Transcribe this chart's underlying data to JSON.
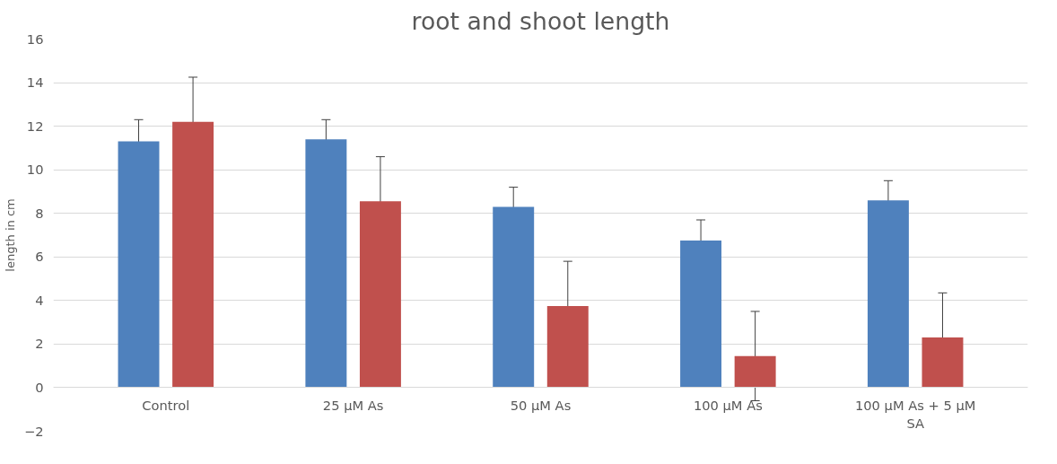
{
  "chart_data": {
    "type": "bar",
    "title": "root and shoot length",
    "ylabel": "length in cm",
    "categories": [
      "Control",
      "25 µM As",
      "50 µM As",
      "100 µM As",
      "100 µM As + 5 µM SA"
    ],
    "series": [
      {
        "color": "#4f81bd",
        "values": [
          11.3,
          11.4,
          8.3,
          6.75,
          8.6
        ],
        "errors": [
          1.0,
          0.9,
          0.9,
          0.95,
          0.9
        ]
      },
      {
        "color": "#c0504d",
        "values": [
          12.2,
          8.55,
          3.75,
          1.45,
          2.3
        ],
        "errors": [
          2.05,
          2.05,
          2.05,
          2.05,
          2.05
        ]
      }
    ],
    "ylim": [
      -2,
      16
    ],
    "yticks": [
      -2,
      0,
      2,
      4,
      6,
      8,
      10,
      12,
      14,
      16
    ],
    "grid": "y"
  }
}
